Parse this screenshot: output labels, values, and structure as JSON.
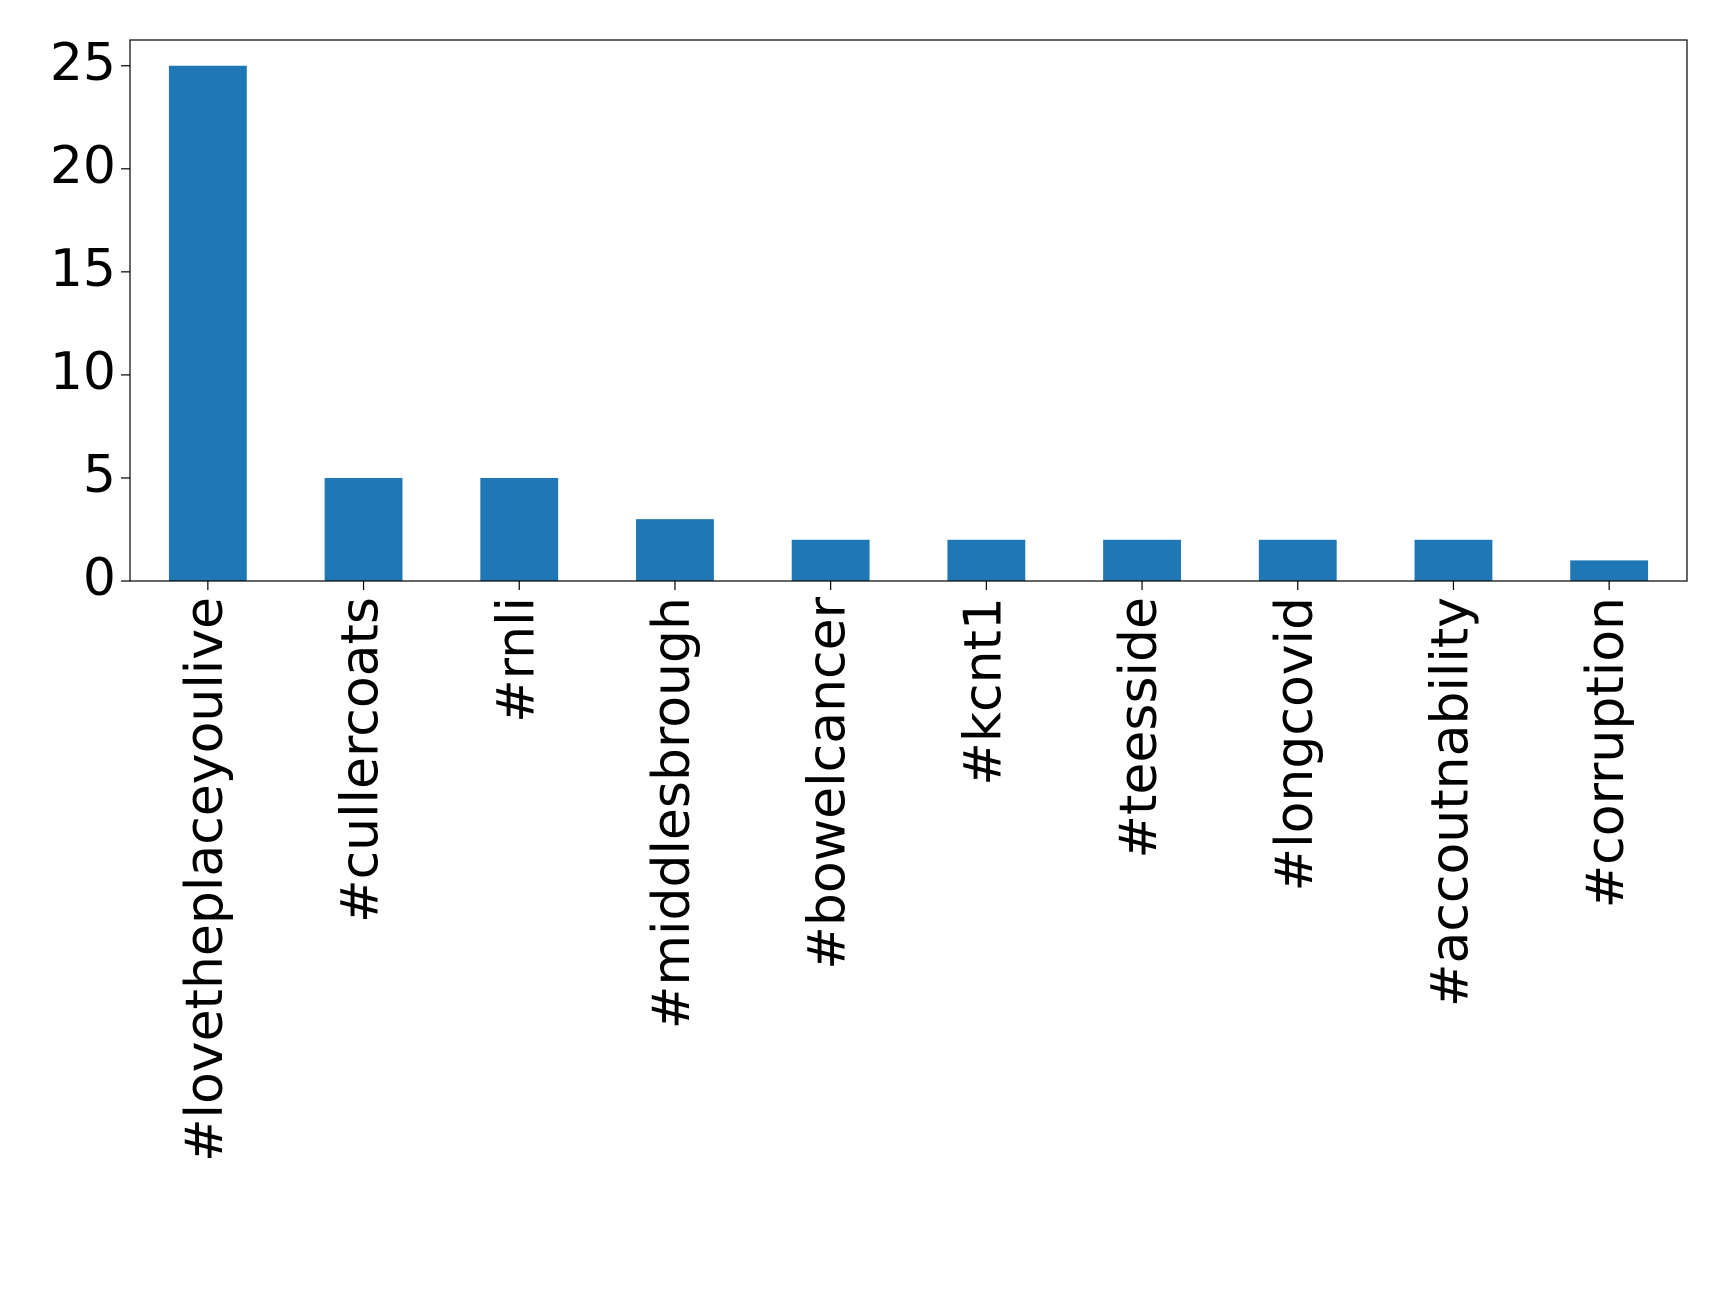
{
  "chart_data": {
    "type": "bar",
    "categories": [
      "#lovetheplaceyoulive",
      "#cullercoats",
      "#rnli",
      "#middlesbrough",
      "#bowelcancer",
      "#kcnt1",
      "#teesside",
      "#longcovid",
      "#accoutnability",
      "#corruption"
    ],
    "values": [
      25,
      5,
      5,
      3,
      2,
      2,
      2,
      2,
      2,
      1
    ],
    "color": "#1f77b4",
    "ylim": [
      0,
      26.25
    ],
    "yticks": [
      0,
      5,
      10,
      15,
      20,
      25
    ],
    "grid": false
  }
}
